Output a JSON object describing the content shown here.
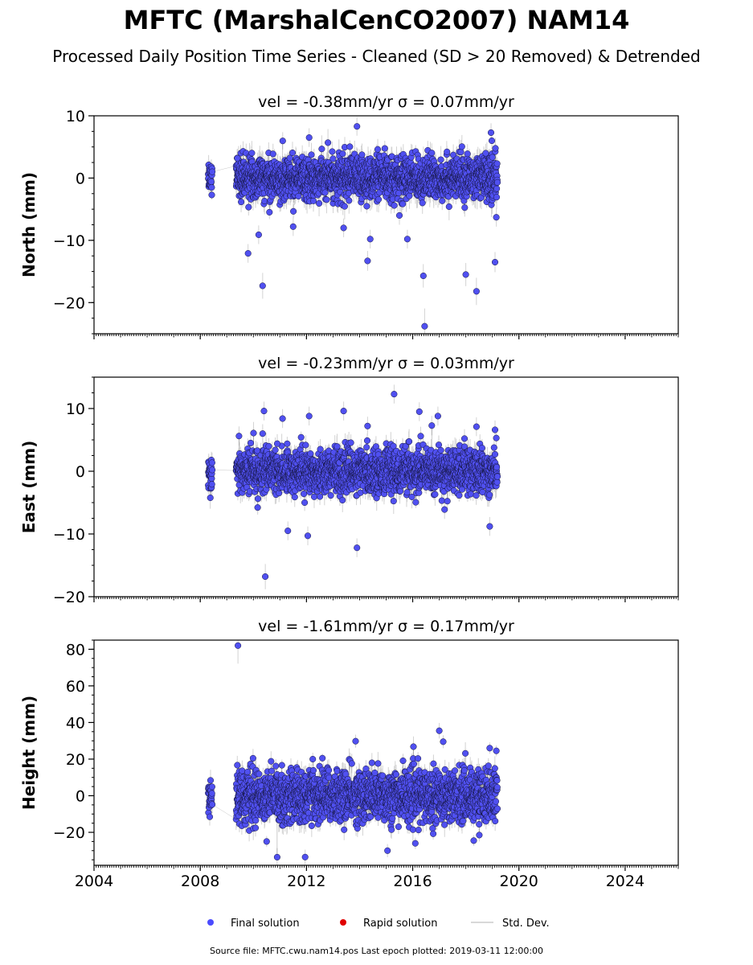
{
  "figure": {
    "title": "MFTC (MarshalCenCO2007) NAM14",
    "subtitle": "Processed Daily Position Time Series - Cleaned (SD > 20 Removed) & Detrended",
    "source_line": "Source file: MFTC.cwu.nam14.pos  Last epoch plotted: 2019-03-11 12:00:00"
  },
  "legend": {
    "placement": "bottom-center",
    "items": [
      {
        "label": "Final solution",
        "color": "#4B4BFF",
        "symbol": "circle"
      },
      {
        "label": "Rapid solution",
        "color": "#E00000",
        "symbol": "circle"
      },
      {
        "label": "Std. Dev.",
        "color": "#CCCCCC",
        "symbol": "line"
      }
    ]
  },
  "colors": {
    "final": "#5050F0",
    "final_edge": "#14143C",
    "stddev": "#C8C8C8",
    "rapid": "#E00000"
  },
  "chart_data": [
    {
      "type": "scatter",
      "panel": "north",
      "title": "vel = -0.38mm/yr   σ = 0.07mm/yr",
      "ylabel": "North (mm)",
      "xlim": [
        2004,
        2026
      ],
      "ylim": [
        -25,
        10
      ],
      "yticks": [
        -20,
        -10,
        0,
        10
      ],
      "xticks": [
        2004,
        2008,
        2012,
        2016,
        2020,
        2024
      ],
      "show_xtick_labels": false,
      "grid": false,
      "series": [
        {
          "segments": [
            {
              "start": 2008.3,
              "end": 2008.45,
              "spread": 1.3,
              "err": 1.2
            },
            {
              "start": 2009.35,
              "end": 2019.19,
              "spread": 1.7,
              "err": 1.5
            }
          ],
          "outliers": [
            {
              "x": 2009.4,
              "y": 3.2
            },
            {
              "x": 2009.8,
              "y": -12.1
            },
            {
              "x": 2010.2,
              "y": -9.1
            },
            {
              "x": 2010.35,
              "y": -17.3
            },
            {
              "x": 2011.5,
              "y": -7.8
            },
            {
              "x": 2012.1,
              "y": 6.5
            },
            {
              "x": 2013.0,
              "y": 3.1
            },
            {
              "x": 2013.4,
              "y": -8.0
            },
            {
              "x": 2013.9,
              "y": 8.3
            },
            {
              "x": 2014.3,
              "y": -13.3
            },
            {
              "x": 2014.4,
              "y": -9.8
            },
            {
              "x": 2015.5,
              "y": -6.0
            },
            {
              "x": 2015.8,
              "y": -9.8
            },
            {
              "x": 2016.4,
              "y": -15.7
            },
            {
              "x": 2016.45,
              "y": -23.8
            },
            {
              "x": 2018.0,
              "y": -15.5
            },
            {
              "x": 2018.4,
              "y": -18.2
            },
            {
              "x": 2018.75,
              "y": 4.0
            },
            {
              "x": 2018.95,
              "y": 7.3
            },
            {
              "x": 2018.98,
              "y": 6.0
            },
            {
              "x": 2019.1,
              "y": -13.5
            },
            {
              "x": 2019.15,
              "y": -6.3
            }
          ]
        }
      ]
    },
    {
      "type": "scatter",
      "panel": "east",
      "title": "vel = -0.23mm/yr   σ = 0.03mm/yr",
      "ylabel": "East (mm)",
      "xlim": [
        2004,
        2026
      ],
      "ylim": [
        -20,
        15
      ],
      "yticks": [
        -20,
        -10,
        0,
        10
      ],
      "xticks": [
        2004,
        2008,
        2012,
        2016,
        2020,
        2024
      ],
      "show_xtick_labels": false,
      "grid": false,
      "series": [
        {
          "segments": [
            {
              "start": 2008.3,
              "end": 2008.45,
              "spread": 1.5,
              "err": 1.3
            },
            {
              "start": 2009.35,
              "end": 2019.19,
              "spread": 1.7,
              "err": 1.4
            }
          ],
          "outliers": [
            {
              "x": 2009.9,
              "y": 4.5
            },
            {
              "x": 2010.4,
              "y": 9.6
            },
            {
              "x": 2010.35,
              "y": 6.0
            },
            {
              "x": 2010.45,
              "y": -16.8
            },
            {
              "x": 2010.9,
              "y": 4.4
            },
            {
              "x": 2011.1,
              "y": 8.4
            },
            {
              "x": 2011.3,
              "y": -9.5
            },
            {
              "x": 2012.1,
              "y": 8.8
            },
            {
              "x": 2012.05,
              "y": -10.3
            },
            {
              "x": 2013.4,
              "y": 9.6
            },
            {
              "x": 2013.9,
              "y": -12.2
            },
            {
              "x": 2014.3,
              "y": 7.2
            },
            {
              "x": 2015.3,
              "y": 12.3
            },
            {
              "x": 2016.25,
              "y": 9.5
            },
            {
              "x": 2016.3,
              "y": 5.6
            },
            {
              "x": 2016.95,
              "y": 8.8
            },
            {
              "x": 2017.2,
              "y": -6.1
            },
            {
              "x": 2017.95,
              "y": 5.2
            },
            {
              "x": 2018.4,
              "y": 7.1
            },
            {
              "x": 2018.9,
              "y": -8.8
            },
            {
              "x": 2019.1,
              "y": 6.6
            },
            {
              "x": 2019.15,
              "y": 5.3
            }
          ]
        }
      ]
    },
    {
      "type": "scatter",
      "panel": "height",
      "title": "vel = -1.61mm/yr   σ = 0.17mm/yr",
      "ylabel": "Height (mm)",
      "xlim": [
        2004,
        2026
      ],
      "ylim": [
        -38,
        85
      ],
      "yticks": [
        -20,
        0,
        20,
        40,
        60,
        80
      ],
      "xticks": [
        2004,
        2008,
        2012,
        2016,
        2020,
        2024
      ],
      "show_xtick_labels": true,
      "grid": false,
      "series": [
        {
          "segments": [
            {
              "start": 2008.3,
              "end": 2008.45,
              "spread": 4.5,
              "err": 4.0
            },
            {
              "start": 2009.35,
              "end": 2019.19,
              "spread": 7.0,
              "err": 4.5
            }
          ],
          "outliers": [
            {
              "x": 2009.42,
              "y": 82.0
            },
            {
              "x": 2010.5,
              "y": -25.0
            },
            {
              "x": 2011.95,
              "y": -33.5
            },
            {
              "x": 2012.6,
              "y": 20.5
            },
            {
              "x": 2013.85,
              "y": 29.8
            },
            {
              "x": 2015.05,
              "y": -30.0
            },
            {
              "x": 2016.1,
              "y": -26.0
            },
            {
              "x": 2017.0,
              "y": 35.5
            },
            {
              "x": 2017.15,
              "y": 29.5
            },
            {
              "x": 2018.3,
              "y": -24.5
            },
            {
              "x": 2018.9,
              "y": 26.0
            },
            {
              "x": 2019.15,
              "y": 24.5
            }
          ]
        }
      ]
    }
  ]
}
